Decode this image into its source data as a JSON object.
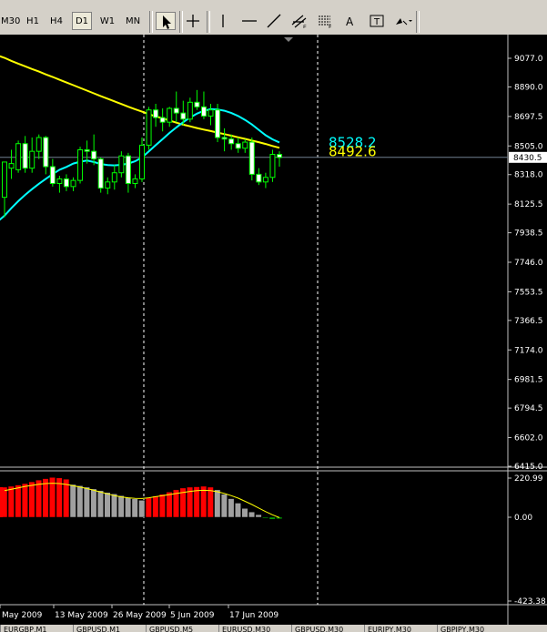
{
  "toolbar": {
    "timeframes": [
      {
        "label": "M30",
        "active": false
      },
      {
        "label": "H1",
        "active": false
      },
      {
        "label": "H4",
        "active": false
      },
      {
        "label": "D1",
        "active": true
      },
      {
        "label": "W1",
        "active": false
      },
      {
        "label": "MN",
        "active": false
      }
    ],
    "tools": [
      {
        "icon": "cursor-arrow-icon",
        "active": true
      },
      {
        "icon": "crosshair-icon",
        "active": false
      },
      {
        "icon": "vertical-line-icon",
        "active": false
      },
      {
        "icon": "horizontal-line-icon",
        "active": false
      },
      {
        "icon": "trendline-icon",
        "active": false
      },
      {
        "icon": "equidistant-channel-icon",
        "active": false
      },
      {
        "icon": "fibonacci-retracement-icon",
        "active": false
      },
      {
        "icon": "text-icon",
        "active": false
      },
      {
        "icon": "text-label-icon",
        "active": false
      },
      {
        "icon": "arrows-dropdown-icon",
        "active": false
      }
    ]
  },
  "chart_data": {
    "type": "candlestick",
    "price_axis": {
      "ylim": [
        6415.0,
        9184.0
      ],
      "ticks": [
        "9077.0",
        "8890.0",
        "8697.5",
        "8505.0",
        "8318.0",
        "8125.5",
        "7938.5",
        "7746.0",
        "7553.5",
        "7366.5",
        "7174.0",
        "6981.5",
        "6794.5",
        "6602.0",
        "6415.0"
      ],
      "tick_values": [
        9077.0,
        8890.0,
        8697.5,
        8505.0,
        8318.0,
        8125.5,
        7938.5,
        7746.0,
        7553.5,
        7366.5,
        7174.0,
        6981.5,
        6794.5,
        6602.0,
        6415.0
      ],
      "current_price_label": "8430.5",
      "current_price": 8430.5
    },
    "time_axis": {
      "labels": [
        "May 2009",
        "13 May 2009",
        "26 May 2009",
        "5 Jun 2009",
        "17 Jun 2009"
      ]
    },
    "candles": [
      {
        "o": 8170,
        "h": 8400,
        "l": 8040,
        "c": 8400
      },
      {
        "o": 8360,
        "h": 8480,
        "l": 8290,
        "c": 8390
      },
      {
        "o": 8350,
        "h": 8540,
        "l": 8330,
        "c": 8520
      },
      {
        "o": 8520,
        "h": 8570,
        "l": 8330,
        "c": 8360
      },
      {
        "o": 8360,
        "h": 8560,
        "l": 8330,
        "c": 8470
      },
      {
        "o": 8470,
        "h": 8580,
        "l": 8420,
        "c": 8560
      },
      {
        "o": 8560,
        "h": 8570,
        "l": 8320,
        "c": 8370
      },
      {
        "o": 8370,
        "h": 8420,
        "l": 8240,
        "c": 8260
      },
      {
        "o": 8260,
        "h": 8310,
        "l": 8200,
        "c": 8290
      },
      {
        "o": 8290,
        "h": 8320,
        "l": 8210,
        "c": 8240
      },
      {
        "o": 8240,
        "h": 8300,
        "l": 8210,
        "c": 8280
      },
      {
        "o": 8280,
        "h": 8500,
        "l": 8260,
        "c": 8480
      },
      {
        "o": 8480,
        "h": 8540,
        "l": 8390,
        "c": 8470
      },
      {
        "o": 8470,
        "h": 8580,
        "l": 8380,
        "c": 8420
      },
      {
        "o": 8420,
        "h": 8430,
        "l": 8200,
        "c": 8230
      },
      {
        "o": 8230,
        "h": 8300,
        "l": 8190,
        "c": 8270
      },
      {
        "o": 8270,
        "h": 8380,
        "l": 8220,
        "c": 8330
      },
      {
        "o": 8330,
        "h": 8470,
        "l": 8300,
        "c": 8440
      },
      {
        "o": 8440,
        "h": 8460,
        "l": 8200,
        "c": 8260
      },
      {
        "o": 8260,
        "h": 8320,
        "l": 8230,
        "c": 8290
      },
      {
        "o": 8290,
        "h": 8560,
        "l": 8270,
        "c": 8510
      },
      {
        "o": 8510,
        "h": 8760,
        "l": 8480,
        "c": 8740
      },
      {
        "o": 8740,
        "h": 8780,
        "l": 8630,
        "c": 8690
      },
      {
        "o": 8690,
        "h": 8750,
        "l": 8600,
        "c": 8660
      },
      {
        "o": 8660,
        "h": 8760,
        "l": 8630,
        "c": 8750
      },
      {
        "o": 8750,
        "h": 8860,
        "l": 8660,
        "c": 8720
      },
      {
        "o": 8720,
        "h": 8800,
        "l": 8640,
        "c": 8680
      },
      {
        "o": 8680,
        "h": 8820,
        "l": 8660,
        "c": 8790
      },
      {
        "o": 8790,
        "h": 8870,
        "l": 8740,
        "c": 8760
      },
      {
        "o": 8760,
        "h": 8860,
        "l": 8680,
        "c": 8700
      },
      {
        "o": 8700,
        "h": 8780,
        "l": 8640,
        "c": 8740
      },
      {
        "o": 8740,
        "h": 8780,
        "l": 8530,
        "c": 8560
      },
      {
        "o": 8560,
        "h": 8620,
        "l": 8470,
        "c": 8550
      },
      {
        "o": 8550,
        "h": 8580,
        "l": 8480,
        "c": 8520
      },
      {
        "o": 8520,
        "h": 8560,
        "l": 8460,
        "c": 8490
      },
      {
        "o": 8490,
        "h": 8550,
        "l": 8460,
        "c": 8530
      },
      {
        "o": 8530,
        "h": 8560,
        "l": 8280,
        "c": 8320
      },
      {
        "o": 8320,
        "h": 8360,
        "l": 8250,
        "c": 8270
      },
      {
        "o": 8270,
        "h": 8330,
        "l": 8230,
        "c": 8300
      },
      {
        "o": 8300,
        "h": 8480,
        "l": 8270,
        "c": 8450
      },
      {
        "o": 8450,
        "h": 8470,
        "l": 8370,
        "c": 8430
      }
    ],
    "moving_averages": [
      {
        "name": "yellow-ma",
        "color": "#ffff00",
        "values": [
          9080,
          9060,
          9042,
          9025,
          9007,
          8990,
          8972,
          8955,
          8937,
          8919,
          8902,
          8884,
          8866,
          8848,
          8830,
          8813,
          8796,
          8779,
          8761,
          8745,
          8729,
          8713,
          8698,
          8685,
          8671,
          8657,
          8644,
          8633,
          8622,
          8612,
          8602,
          8592,
          8582,
          8572,
          8561,
          8551,
          8540,
          8530,
          8518,
          8505,
          8493
        ]
      },
      {
        "name": "cyan-ma",
        "color": "#00ffff",
        "values": [
          8050,
          8100,
          8145,
          8186,
          8223,
          8258,
          8290,
          8321,
          8350,
          8368,
          8390,
          8402,
          8410,
          8400,
          8387,
          8380,
          8378,
          8382,
          8390,
          8405,
          8430,
          8470,
          8510,
          8550,
          8590,
          8626,
          8660,
          8690,
          8716,
          8735,
          8745,
          8743,
          8735,
          8720,
          8700,
          8675,
          8645,
          8610,
          8575,
          8548,
          8528
        ]
      }
    ],
    "ma_labels": [
      {
        "text": "8528.2",
        "color": "#00ffff"
      },
      {
        "text": "8492.6",
        "color": "#ffff00"
      }
    ],
    "oscillator": {
      "ticks": [
        "220.99",
        "0.00",
        "-423.38"
      ],
      "tick_values": [
        220.99,
        0.0,
        -423.38
      ],
      "ylim": [
        -423.38,
        240.0
      ],
      "histogram": [
        170,
        175,
        182,
        190,
        200,
        210,
        218,
        225,
        222,
        215,
        185,
        178,
        170,
        160,
        150,
        140,
        132,
        122,
        112,
        104,
        96,
        110,
        120,
        130,
        142,
        155,
        165,
        170,
        172,
        175,
        170,
        155,
        130,
        105,
        80,
        50,
        30,
        15,
        -5,
        -10,
        -8
      ],
      "bar_colors": [
        "#ff0000",
        "#ff0000",
        "#ff0000",
        "#ff0000",
        "#ff0000",
        "#ff0000",
        "#ff0000",
        "#ff0000",
        "#ff0000",
        "#ff0000",
        "#a0a0a0",
        "#a0a0a0",
        "#a0a0a0",
        "#a0a0a0",
        "#a0a0a0",
        "#a0a0a0",
        "#a0a0a0",
        "#a0a0a0",
        "#a0a0a0",
        "#a0a0a0",
        "#a0a0a0",
        "#ff0000",
        "#ff0000",
        "#ff0000",
        "#ff0000",
        "#ff0000",
        "#ff0000",
        "#ff0000",
        "#ff0000",
        "#ff0000",
        "#ff0000",
        "#a0a0a0",
        "#a0a0a0",
        "#a0a0a0",
        "#a0a0a0",
        "#a0a0a0",
        "#a0a0a0",
        "#a0a0a0",
        "#00aa00",
        "#00aa00",
        "#00aa00"
      ],
      "signal_line": [
        150,
        158,
        166,
        174,
        180,
        186,
        190,
        192,
        190,
        185,
        178,
        170,
        162,
        152,
        142,
        132,
        122,
        115,
        110,
        107,
        106,
        110,
        116,
        122,
        128,
        134,
        140,
        146,
        150,
        152,
        150,
        144,
        134,
        122,
        108,
        90,
        72,
        52,
        32,
        14,
        -2
      ],
      "signal_color": "#ffff00"
    }
  },
  "status_tabs": [
    "EURGBP,M1",
    "GBPUSD,M1",
    "GBPUSD,M5",
    "EURUSD,M30",
    "GBPUSD,M30",
    "EURJPY,M30",
    "GBPJPY,M30"
  ]
}
